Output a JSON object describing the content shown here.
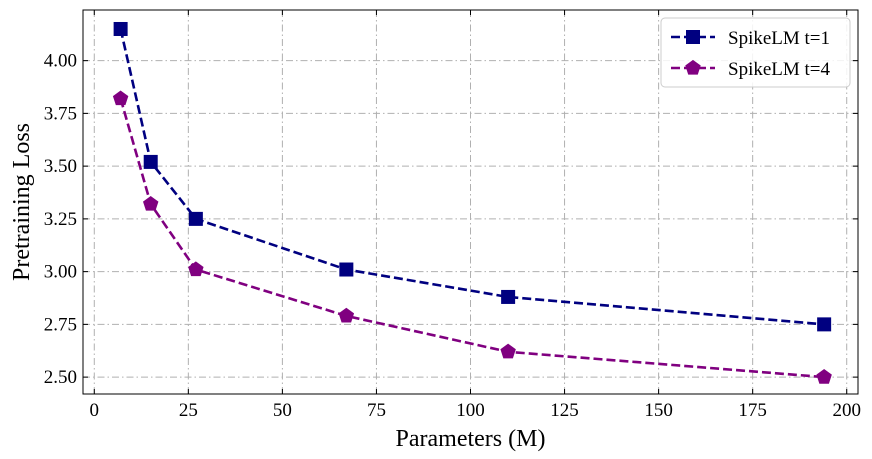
{
  "chart_data": {
    "type": "line",
    "title": "",
    "xlabel": "Parameters (M)",
    "ylabel": "Pretraining Loss",
    "xlim": [
      -3,
      203
    ],
    "ylim": [
      2.42,
      4.24
    ],
    "xticks": [
      0,
      25,
      50,
      75,
      100,
      125,
      150,
      175,
      200
    ],
    "yticks": [
      2.5,
      2.75,
      3.0,
      3.25,
      3.5,
      3.75,
      4.0
    ],
    "grid": true,
    "legend_position": "top-right",
    "series": [
      {
        "name": "SpikeLM t=1",
        "color": "#000080",
        "marker": "square",
        "line_style": "dashed",
        "x": [
          7,
          15,
          27,
          67,
          110,
          194
        ],
        "y": [
          4.15,
          3.52,
          3.25,
          3.01,
          2.88,
          2.75
        ]
      },
      {
        "name": "SpikeLM t=4",
        "color": "#800080",
        "marker": "pentagon",
        "line_style": "dashed",
        "x": [
          7,
          15,
          27,
          67,
          110,
          194
        ],
        "y": [
          3.82,
          3.32,
          3.01,
          2.79,
          2.62,
          2.5
        ]
      }
    ]
  }
}
